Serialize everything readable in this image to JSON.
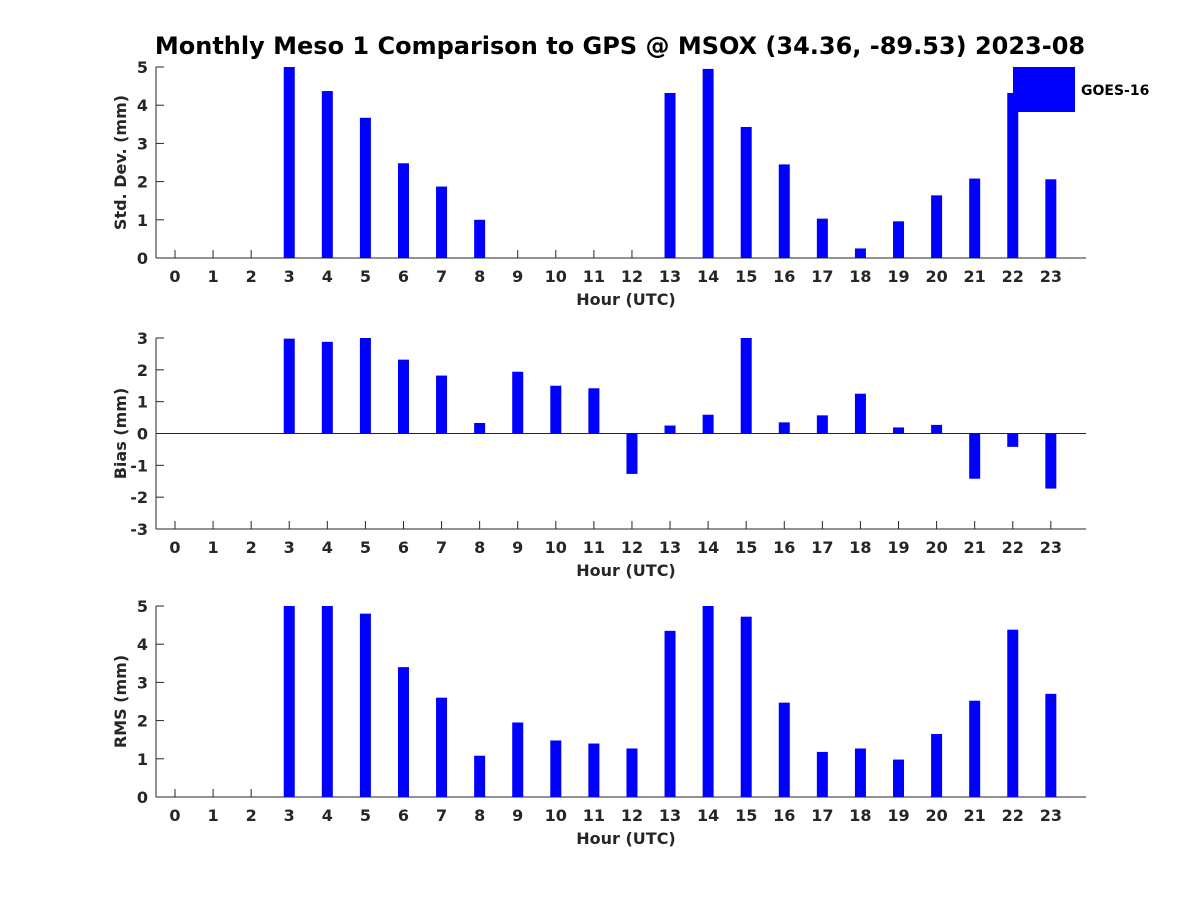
{
  "title": "Monthly Meso 1 Comparison to GPS @ MSOX (34.36, -89.53) 2023-08",
  "colors": {
    "bar": "#0000ff",
    "axis": "#262626"
  },
  "legend": {
    "label": "GOES-16",
    "placement": "top-right"
  },
  "chart_data": [
    {
      "type": "bar",
      "name": "std",
      "categories": [
        "0",
        "1",
        "2",
        "3",
        "4",
        "5",
        "6",
        "7",
        "8",
        "9",
        "10",
        "11",
        "12",
        "13",
        "14",
        "15",
        "16",
        "17",
        "18",
        "19",
        "20",
        "21",
        "22",
        "23"
      ],
      "values": [
        null,
        null,
        null,
        5.0,
        4.37,
        3.67,
        2.48,
        1.87,
        1.0,
        null,
        null,
        null,
        null,
        4.32,
        4.95,
        3.43,
        2.45,
        1.03,
        0.25,
        0.96,
        1.64,
        2.08,
        4.32,
        2.06
      ],
      "xlabel": "Hour (UTC)",
      "ylabel": "Std. Dev. (mm)",
      "ylim": [
        0,
        5
      ],
      "yticks": [
        0,
        1,
        2,
        3,
        4,
        5
      ],
      "grid": false
    },
    {
      "type": "bar",
      "name": "bias",
      "categories": [
        "0",
        "1",
        "2",
        "3",
        "4",
        "5",
        "6",
        "7",
        "8",
        "9",
        "10",
        "11",
        "12",
        "13",
        "14",
        "15",
        "16",
        "17",
        "18",
        "19",
        "20",
        "21",
        "22",
        "23"
      ],
      "values": [
        null,
        null,
        null,
        2.98,
        2.88,
        3.0,
        2.32,
        1.82,
        0.33,
        1.94,
        1.5,
        1.42,
        -1.27,
        0.25,
        0.59,
        3.0,
        0.35,
        0.57,
        1.25,
        0.19,
        0.27,
        -1.42,
        -0.42,
        -1.73
      ],
      "xlabel": "Hour (UTC)",
      "ylabel": "Bias (mm)",
      "ylim": [
        -3,
        3
      ],
      "yticks": [
        -3,
        -2,
        -1,
        0,
        1,
        2,
        3
      ],
      "grid": false
    },
    {
      "type": "bar",
      "name": "rms",
      "categories": [
        "0",
        "1",
        "2",
        "3",
        "4",
        "5",
        "6",
        "7",
        "8",
        "9",
        "10",
        "11",
        "12",
        "13",
        "14",
        "15",
        "16",
        "17",
        "18",
        "19",
        "20",
        "21",
        "22",
        "23"
      ],
      "values": [
        null,
        null,
        null,
        5.0,
        5.0,
        4.8,
        3.4,
        2.6,
        1.08,
        1.95,
        1.48,
        1.4,
        1.27,
        4.35,
        5.0,
        4.72,
        2.47,
        1.18,
        1.27,
        0.98,
        1.65,
        2.52,
        4.38,
        2.7
      ],
      "xlabel": "Hour (UTC)",
      "ylabel": "RMS (mm)",
      "ylim": [
        0,
        5
      ],
      "yticks": [
        0,
        1,
        2,
        3,
        4,
        5
      ],
      "grid": false
    }
  ]
}
